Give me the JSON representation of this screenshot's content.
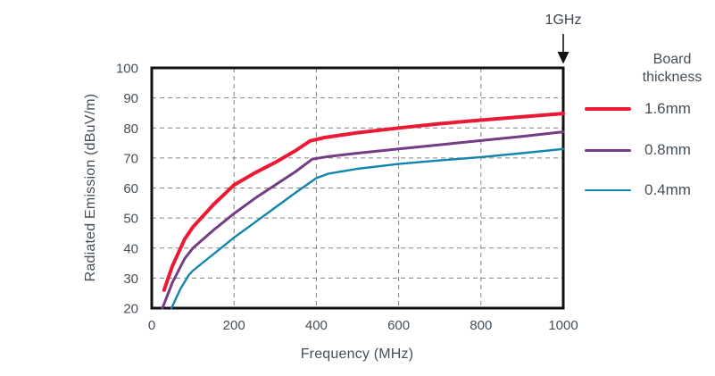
{
  "chart_data": {
    "type": "line",
    "xlabel": "Frequency (MHz)",
    "ylabel": "Radiated Emission (dBuV/m)",
    "xlim": [
      0,
      1000
    ],
    "ylim": [
      20,
      100
    ],
    "xticks": [
      0,
      200,
      400,
      600,
      800,
      1000
    ],
    "yticks": [
      20,
      30,
      40,
      50,
      60,
      70,
      80,
      90,
      100
    ],
    "grid": "dashed",
    "grid_color": "#6f6f6f",
    "axis_color": "#111111",
    "text_color": "#454f58",
    "legend_title": "Board thickness",
    "legend_position": "right",
    "annotation": {
      "label": "1GHz",
      "x": 1000
    },
    "series": [
      {
        "name": "1.6mm",
        "color": "#eb1934",
        "stroke_width": 4,
        "points": [
          [
            30,
            26
          ],
          [
            50,
            34
          ],
          [
            80,
            43
          ],
          [
            100,
            47
          ],
          [
            150,
            54.5
          ],
          [
            200,
            61
          ],
          [
            250,
            65
          ],
          [
            300,
            68.5
          ],
          [
            350,
            72.5
          ],
          [
            385,
            75.7
          ],
          [
            420,
            76.8
          ],
          [
            500,
            78.4
          ],
          [
            600,
            80
          ],
          [
            700,
            81.4
          ],
          [
            800,
            82.6
          ],
          [
            900,
            83.7
          ],
          [
            1000,
            84.8
          ]
        ]
      },
      {
        "name": "0.8mm",
        "color": "#733c85",
        "stroke_width": 3,
        "points": [
          [
            26,
            20
          ],
          [
            50,
            28.5
          ],
          [
            80,
            36.5
          ],
          [
            100,
            40
          ],
          [
            150,
            46
          ],
          [
            200,
            51.5
          ],
          [
            250,
            56.5
          ],
          [
            300,
            61
          ],
          [
            350,
            65.5
          ],
          [
            390,
            69.6
          ],
          [
            430,
            70.5
          ],
          [
            500,
            71.6
          ],
          [
            600,
            73
          ],
          [
            700,
            74.4
          ],
          [
            800,
            75.8
          ],
          [
            900,
            77.2
          ],
          [
            1000,
            78.7
          ]
        ]
      },
      {
        "name": "0.4mm",
        "color": "#1385ad",
        "stroke_width": 2.4,
        "points": [
          [
            48,
            20
          ],
          [
            70,
            26.5
          ],
          [
            90,
            31
          ],
          [
            100,
            32.5
          ],
          [
            150,
            38
          ],
          [
            200,
            43.5
          ],
          [
            250,
            48.5
          ],
          [
            300,
            53.5
          ],
          [
            350,
            58.5
          ],
          [
            400,
            63.3
          ],
          [
            430,
            64.8
          ],
          [
            500,
            66.4
          ],
          [
            600,
            68
          ],
          [
            700,
            69.2
          ],
          [
            800,
            70.3
          ],
          [
            900,
            71.6
          ],
          [
            1000,
            73
          ]
        ]
      }
    ]
  }
}
